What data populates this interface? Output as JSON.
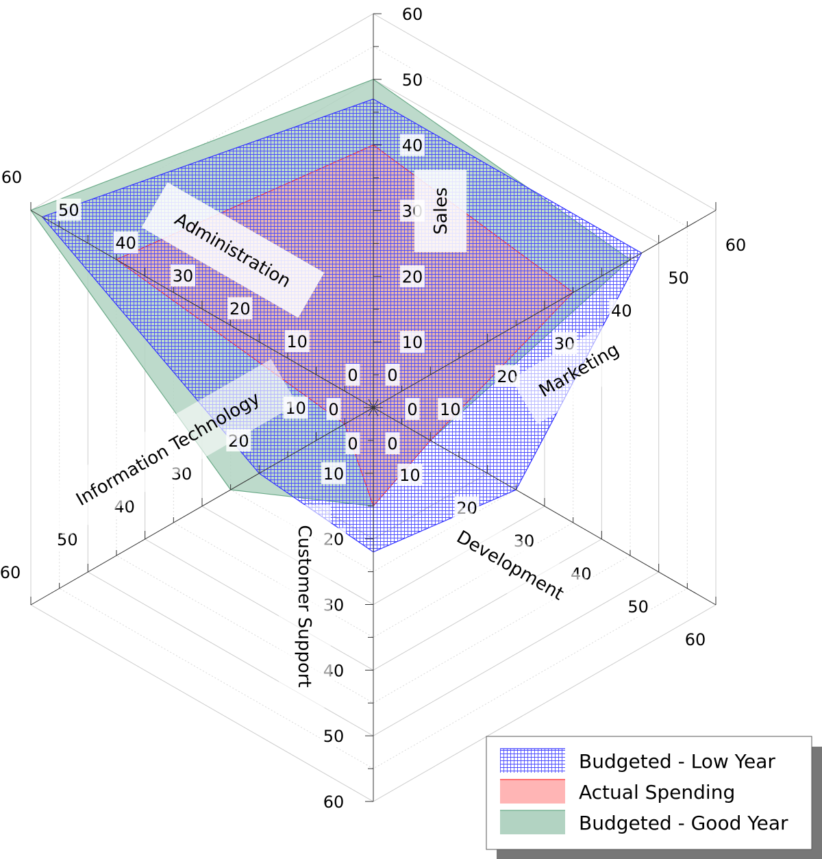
{
  "chart_data": {
    "type": "radar",
    "axes": [
      "Sales",
      "Marketing",
      "Development",
      "Customer Support",
      "Information Technology",
      "Administration"
    ],
    "rlim": [
      0,
      60
    ],
    "ticks": [
      "0",
      "10",
      "20",
      "30",
      "40",
      "50",
      "60"
    ],
    "grid": true,
    "legend_position": "bottom-right",
    "series": [
      {
        "name": "Budgeted - Good Year",
        "values": [
          50,
          45,
          10,
          15,
          25,
          60
        ],
        "color": "#6aaa88",
        "fill": "#b2d3c2",
        "style": "solid"
      },
      {
        "name": "Actual Spending",
        "values": [
          40,
          35,
          10,
          15,
          5,
          45
        ],
        "color": "#ff3333",
        "fill": "#ff9c9c",
        "style": "solid"
      },
      {
        "name": "Budgeted - Low Year",
        "values": [
          47,
          47,
          25,
          22,
          20,
          58
        ],
        "color": "#3333ff",
        "fill": "#5555ff",
        "style": "crosshatch"
      }
    ]
  }
}
